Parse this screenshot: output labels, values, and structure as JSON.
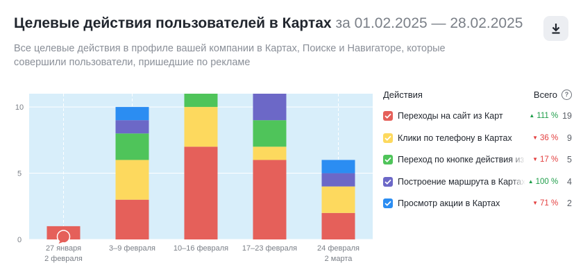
{
  "header": {
    "title": "Целевые действия пользователей в Картах",
    "period": "за 01.02.2025 — 28.02.2025",
    "subtitle": "Все целевые действия в профиле вашей компании в Картах, Поиске и Навигаторе, которые совершили пользователи, пришедшие по рекламе",
    "download_icon": "download-icon"
  },
  "legend": {
    "header_actions": "Действия",
    "header_total": "Всего",
    "help_icon": "?",
    "items": [
      {
        "label": "Переходы на сайт из Карт",
        "color": "#e5605a",
        "change": "111 %",
        "trend": "up",
        "total": "19"
      },
      {
        "label": "Клики по телефону в Картах",
        "color": "#fdd95e",
        "change": "36 %",
        "trend": "down",
        "total": "9"
      },
      {
        "label": "Переход по кнопке действия из Карт",
        "color": "#4fc45a",
        "change": "17 %",
        "trend": "down",
        "total": "5"
      },
      {
        "label": "Построение маршрута в Картах",
        "color": "#6c68c7",
        "change": "100 %",
        "trend": "up",
        "total": "4"
      },
      {
        "label": "Просмотр акции в Картах",
        "color": "#2b8df2",
        "change": "71 %",
        "trend": "down",
        "total": "2"
      }
    ]
  },
  "chart_data": {
    "type": "bar",
    "stacked": true,
    "categories": [
      [
        "27 января",
        "2 февраля"
      ],
      [
        "3–9 февраля"
      ],
      [
        "10–16 февраля"
      ],
      [
        "17–23 февраля"
      ],
      [
        "24 февраля",
        "2 марта"
      ]
    ],
    "series": [
      {
        "name": "Переходы на сайт из Карт",
        "color": "#e5605a",
        "values": [
          1,
          3,
          7,
          6,
          2
        ]
      },
      {
        "name": "Клики по телефону в Картах",
        "color": "#fdd95e",
        "values": [
          0,
          3,
          3,
          1,
          2
        ]
      },
      {
        "name": "Переход по кнопке действия из Карт",
        "color": "#4fc45a",
        "values": [
          0,
          2,
          1,
          2,
          0
        ]
      },
      {
        "name": "Построение маршрута в Картах",
        "color": "#6c68c7",
        "values": [
          0,
          1,
          0,
          2,
          1
        ]
      },
      {
        "name": "Просмотр акции в Картах",
        "color": "#2b8df2",
        "values": [
          0,
          1,
          0,
          0,
          1
        ]
      }
    ],
    "ylim": [
      0,
      11
    ],
    "yticks": [
      0,
      5,
      10
    ],
    "grid": true,
    "legend_position": "right",
    "annotation": {
      "category_index": 0,
      "icon": "comment-icon",
      "color": "#e5605a"
    },
    "highlight_background": "#d8eefa"
  }
}
